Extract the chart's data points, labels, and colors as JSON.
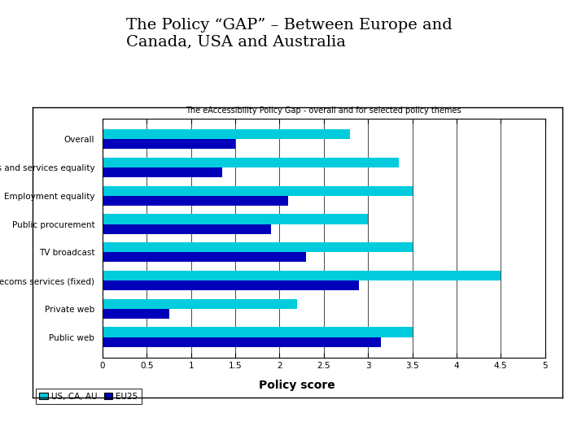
{
  "title_outer": "The Policy “GAP” – Between Europe and\nCanada, USA and Australia",
  "chart_title": "The eAccessibility Policy Gap - overall and for selected policy themes",
  "categories": [
    "Overall",
    "Goods and services equality",
    "Employment equality",
    "Public procurement",
    "TV broadcast",
    "Telecoms services (fixed)",
    "Private web",
    "Public web"
  ],
  "us_ca_au": [
    2.8,
    3.35,
    3.5,
    3.0,
    3.5,
    4.5,
    2.2,
    3.5
  ],
  "eu25": [
    1.5,
    1.35,
    2.1,
    1.9,
    2.3,
    2.9,
    0.75,
    3.15
  ],
  "color_us": "#00CCDD",
  "color_eu": "#0000BB",
  "xlabel": "Policy score",
  "xlim": [
    0,
    5
  ],
  "xticks": [
    0,
    0.5,
    1,
    1.5,
    2,
    2.5,
    3,
    3.5,
    4,
    4.5,
    5
  ],
  "legend_us": "US, CA, AU",
  "legend_eu": "EU25",
  "outer_bg": "#ffffff",
  "inner_bg": "#ffffff",
  "title_outer_fontsize": 14,
  "chart_title_fontsize": 7,
  "ytick_fontsize": 7.5,
  "xtick_fontsize": 7.5,
  "xlabel_fontsize": 10
}
